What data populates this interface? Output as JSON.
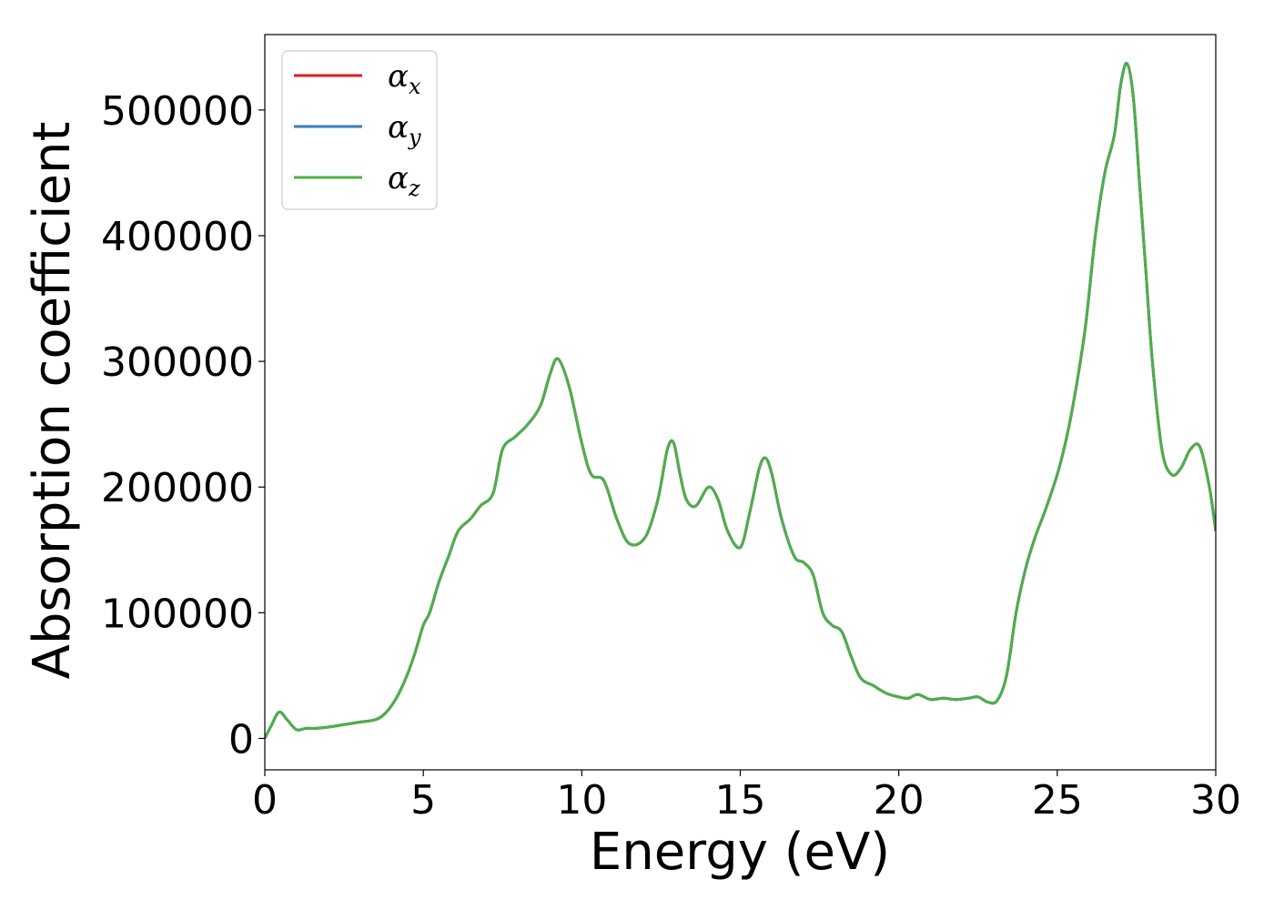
{
  "chart_data": {
    "type": "line",
    "xlabel": "Energy (eV)",
    "ylabel": "Absorption coefficient",
    "xlim": [
      0,
      30
    ],
    "ylim": [
      -25000,
      560000
    ],
    "xticks": [
      0,
      5,
      10,
      15,
      20,
      25,
      30
    ],
    "yticks": [
      0,
      100000,
      200000,
      300000,
      400000,
      500000
    ],
    "grid": false,
    "legend_position": "top-left",
    "x": [
      0,
      0.2,
      0.45,
      0.7,
      1.0,
      1.3,
      1.6,
      2.0,
      2.5,
      3.0,
      3.5,
      3.8,
      4.1,
      4.4,
      4.7,
      5.0,
      5.2,
      5.5,
      5.8,
      6.1,
      6.5,
      6.8,
      7.2,
      7.5,
      7.9,
      8.3,
      8.7,
      9.0,
      9.25,
      9.6,
      10.0,
      10.3,
      10.7,
      11.1,
      11.5,
      12.0,
      12.4,
      12.7,
      12.9,
      13.1,
      13.3,
      13.6,
      14.0,
      14.3,
      14.6,
      15.0,
      15.3,
      15.6,
      15.8,
      16.0,
      16.3,
      16.7,
      17.0,
      17.3,
      17.6,
      17.9,
      18.2,
      18.5,
      18.8,
      19.2,
      19.6,
      20.0,
      20.3,
      20.6,
      21.0,
      21.4,
      21.8,
      22.2,
      22.5,
      22.8,
      23.1,
      23.4,
      23.7,
      24.0,
      24.3,
      24.6,
      25.0,
      25.3,
      25.6,
      25.9,
      26.2,
      26.5,
      26.8,
      27.0,
      27.2,
      27.4,
      27.6,
      27.8,
      28.0,
      28.3,
      28.6,
      28.9,
      29.2,
      29.5,
      29.8,
      30.0
    ],
    "series": [
      {
        "name": "α_x",
        "color": "#e41a1c",
        "y": [
          0,
          10000,
          21000,
          15000,
          7000,
          8000,
          8000,
          9000,
          11000,
          13000,
          15000,
          20000,
          30000,
          45000,
          65000,
          90000,
          100000,
          125000,
          145000,
          165000,
          175000,
          185000,
          195000,
          230000,
          240000,
          250000,
          265000,
          290000,
          302000,
          280000,
          235000,
          210000,
          205000,
          175000,
          155000,
          160000,
          190000,
          230000,
          235000,
          210000,
          190000,
          185000,
          200000,
          190000,
          165000,
          152000,
          180000,
          215000,
          223000,
          210000,
          175000,
          145000,
          140000,
          130000,
          100000,
          90000,
          85000,
          65000,
          48000,
          42000,
          36000,
          33000,
          32000,
          35000,
          31000,
          32000,
          31000,
          32000,
          33000,
          29000,
          30000,
          50000,
          100000,
          135000,
          160000,
          180000,
          210000,
          240000,
          280000,
          330000,
          400000,
          450000,
          480000,
          520000,
          537000,
          510000,
          440000,
          370000,
          300000,
          230000,
          210000,
          215000,
          230000,
          232000,
          200000,
          165000
        ]
      },
      {
        "name": "α_y",
        "color": "#377eb8",
        "y": [
          0,
          10000,
          21000,
          15000,
          7000,
          8000,
          8000,
          9000,
          11000,
          13000,
          15000,
          20000,
          30000,
          45000,
          65000,
          90000,
          100000,
          125000,
          145000,
          165000,
          175000,
          185000,
          195000,
          230000,
          240000,
          250000,
          265000,
          290000,
          302000,
          280000,
          235000,
          210000,
          205000,
          175000,
          155000,
          160000,
          190000,
          230000,
          235000,
          210000,
          190000,
          185000,
          200000,
          190000,
          165000,
          152000,
          180000,
          215000,
          223000,
          210000,
          175000,
          145000,
          140000,
          130000,
          100000,
          90000,
          85000,
          65000,
          48000,
          42000,
          36000,
          33000,
          32000,
          35000,
          31000,
          32000,
          31000,
          32000,
          33000,
          29000,
          30000,
          50000,
          100000,
          135000,
          160000,
          180000,
          210000,
          240000,
          280000,
          330000,
          400000,
          450000,
          480000,
          520000,
          537000,
          510000,
          440000,
          370000,
          300000,
          230000,
          210000,
          215000,
          230000,
          232000,
          200000,
          165000
        ]
      },
      {
        "name": "α_z",
        "color": "#4daf4a",
        "y": [
          0,
          10000,
          21000,
          15000,
          7000,
          8000,
          8000,
          9000,
          11000,
          13000,
          15000,
          20000,
          30000,
          45000,
          65000,
          90000,
          100000,
          125000,
          145000,
          165000,
          175000,
          185000,
          195000,
          230000,
          240000,
          250000,
          265000,
          290000,
          302000,
          280000,
          235000,
          210000,
          205000,
          175000,
          155000,
          160000,
          190000,
          230000,
          235000,
          210000,
          190000,
          185000,
          200000,
          190000,
          165000,
          152000,
          180000,
          215000,
          223000,
          210000,
          175000,
          145000,
          140000,
          130000,
          100000,
          90000,
          85000,
          65000,
          48000,
          42000,
          36000,
          33000,
          32000,
          35000,
          31000,
          32000,
          31000,
          32000,
          33000,
          29000,
          30000,
          50000,
          100000,
          135000,
          160000,
          180000,
          210000,
          240000,
          280000,
          330000,
          400000,
          450000,
          480000,
          520000,
          537000,
          510000,
          440000,
          370000,
          300000,
          230000,
          210000,
          215000,
          230000,
          232000,
          200000,
          165000
        ]
      }
    ],
    "legend": [
      {
        "base": "α",
        "sub": "x"
      },
      {
        "base": "α",
        "sub": "y"
      },
      {
        "base": "α",
        "sub": "z"
      }
    ]
  }
}
